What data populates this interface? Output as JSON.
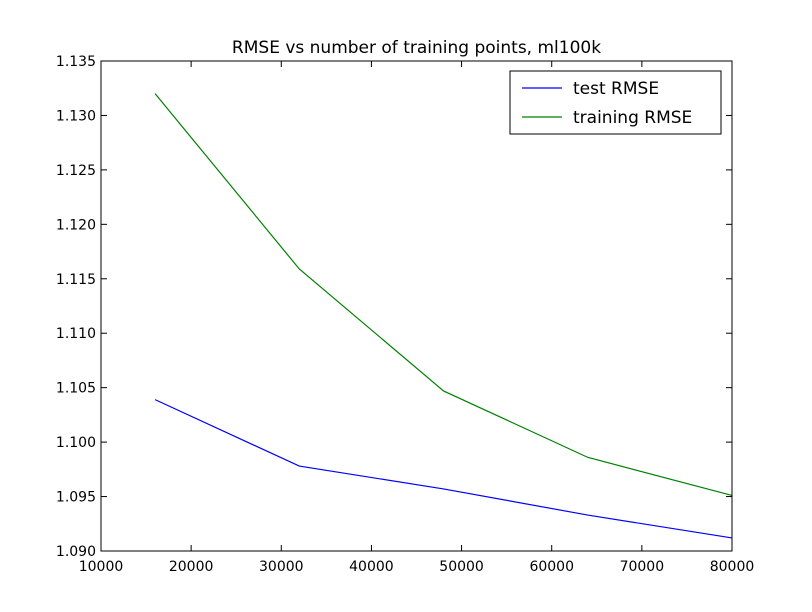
{
  "chart_data": {
    "type": "line",
    "title": "RMSE vs number of training points, ml100k",
    "xlabel": "",
    "ylabel": "",
    "xlim": [
      10000,
      80000
    ],
    "ylim": [
      1.09,
      1.135
    ],
    "x_ticks": [
      "10000",
      "20000",
      "30000",
      "40000",
      "50000",
      "60000",
      "70000",
      "80000"
    ],
    "y_ticks": [
      "1.090",
      "1.095",
      "1.100",
      "1.105",
      "1.110",
      "1.115",
      "1.120",
      "1.125",
      "1.130",
      "1.135"
    ],
    "grid": false,
    "legend_position": "top-right",
    "series": [
      {
        "name": "test RMSE",
        "color": "#0000ff",
        "x": [
          16000,
          32000,
          48000,
          64000,
          80000
        ],
        "y": [
          1.1039,
          1.0978,
          1.0957,
          1.0933,
          1.0912
        ]
      },
      {
        "name": "training RMSE",
        "color": "#008000",
        "x": [
          16000,
          32000,
          48000,
          64000,
          80000
        ],
        "y": [
          1.132,
          1.1159,
          1.1047,
          1.0986,
          1.0951
        ]
      }
    ]
  }
}
